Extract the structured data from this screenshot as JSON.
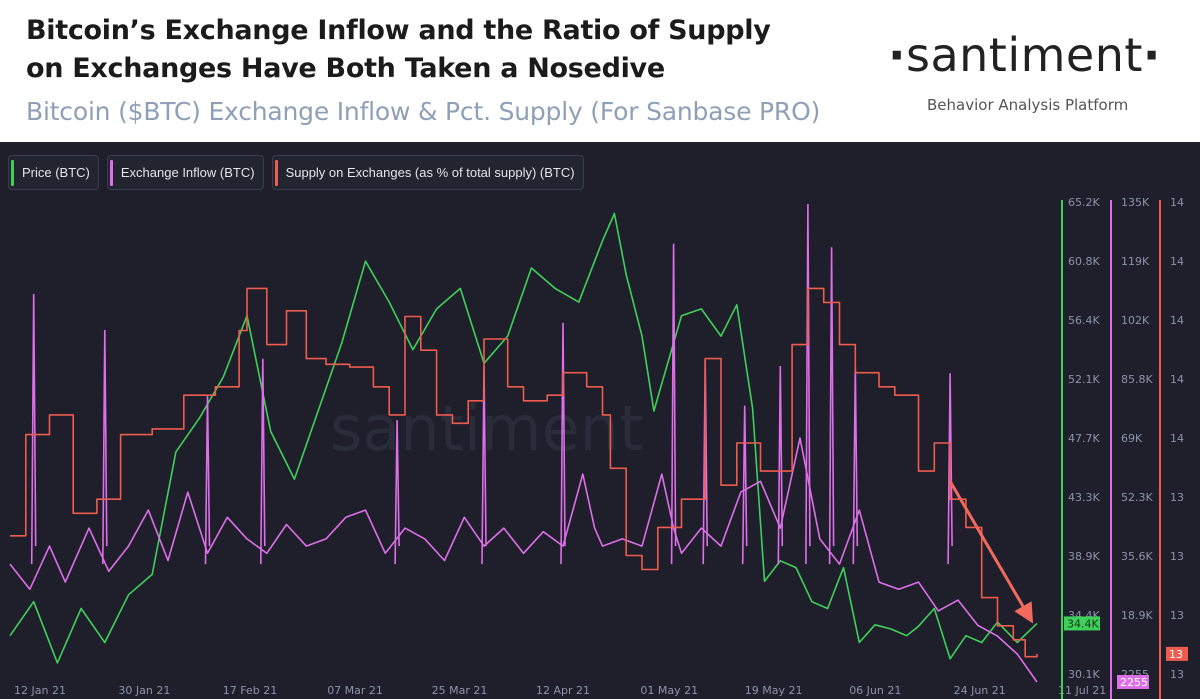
{
  "header": {
    "title_line1": "Bitcoin’s Exchange Inflow and the Ratio of Supply",
    "title_line2": "on Exchanges Have Both Taken a Nosedive",
    "subtitle": "Bitcoin ($BTC) Exchange Inflow & Pct. Supply (For Sanbase PRO)",
    "brand": "santiment",
    "tagline": "Behavior Analysis Platform"
  },
  "watermark": "santiment",
  "colors": {
    "price": "#3fd05a",
    "inflow": "#dd6fe8",
    "supply": "#ee5c4e",
    "background": "#1e1f2b",
    "arrow": "#f26a5d"
  },
  "chart_data": {
    "type": "line",
    "legend": [
      {
        "key": "price",
        "label": "Price (BTC)"
      },
      {
        "key": "inflow",
        "label": "Exchange Inflow (BTC)"
      },
      {
        "key": "supply",
        "label": "Supply on Exchanges (as % of total supply) (BTC)"
      }
    ],
    "x_ticks": [
      "12 Jan 21",
      "30 Jan 21",
      "17 Feb 21",
      "07 Mar 21",
      "25 Mar 21",
      "12 Apr 21",
      "01 May 21",
      "19 May 21",
      "06 Jun 21",
      "24 Jun 21",
      "11 Jul 21"
    ],
    "axes": {
      "price": {
        "ticks": [
          "65.2K",
          "60.8K",
          "56.4K",
          "52.1K",
          "47.7K",
          "43.3K",
          "38.9K",
          "34.4K",
          "30.1K"
        ],
        "range": [
          30100,
          65200
        ],
        "current": "34.4K"
      },
      "inflow": {
        "ticks": [
          "135K",
          "119K",
          "102K",
          "85.8K",
          "69K",
          "52.3K",
          "35.6K",
          "18.9K",
          "2255"
        ],
        "range": [
          2255,
          135000
        ],
        "current": "2255"
      },
      "supply": {
        "ticks": [
          "14",
          "14",
          "14",
          "14",
          "14",
          "13",
          "13",
          "13",
          "13"
        ],
        "range": [
          12.9,
          14.6
        ],
        "current": "13"
      }
    },
    "series": [
      {
        "name": "Price (BTC)",
        "key": "price",
        "points": [
          [
            0,
            33500
          ],
          [
            6,
            36000
          ],
          [
            12,
            31500
          ],
          [
            18,
            35500
          ],
          [
            24,
            33000
          ],
          [
            30,
            36500
          ],
          [
            36,
            38000
          ],
          [
            42,
            47000
          ],
          [
            48,
            49500
          ],
          [
            54,
            52500
          ],
          [
            60,
            57000
          ],
          [
            66,
            48500
          ],
          [
            72,
            45000
          ],
          [
            78,
            50000
          ],
          [
            84,
            55000
          ],
          [
            90,
            61000
          ],
          [
            96,
            58000
          ],
          [
            102,
            54500
          ],
          [
            108,
            57500
          ],
          [
            114,
            59000
          ],
          [
            120,
            53500
          ],
          [
            126,
            55500
          ],
          [
            132,
            60500
          ],
          [
            138,
            59000
          ],
          [
            144,
            58000
          ],
          [
            150,
            62500
          ],
          [
            153,
            64500
          ],
          [
            156,
            60000
          ],
          [
            160,
            55500
          ],
          [
            163,
            50000
          ],
          [
            166,
            53000
          ],
          [
            170,
            57000
          ],
          [
            175,
            57500
          ],
          [
            180,
            55500
          ],
          [
            184,
            57800
          ],
          [
            188,
            50200
          ],
          [
            191,
            37500
          ],
          [
            195,
            39000
          ],
          [
            199,
            38500
          ],
          [
            203,
            36000
          ],
          [
            207,
            35500
          ],
          [
            211,
            38500
          ],
          [
            215,
            33000
          ],
          [
            219,
            34300
          ],
          [
            223,
            34000
          ],
          [
            227,
            33500
          ],
          [
            230,
            34200
          ],
          [
            234,
            35500
          ],
          [
            238,
            31800
          ],
          [
            242,
            33500
          ],
          [
            246,
            33000
          ],
          [
            250,
            34500
          ],
          [
            255,
            33000
          ],
          [
            260,
            34400
          ]
        ]
      },
      {
        "name": "Exchange Inflow (BTC)",
        "key": "inflow",
        "points": [
          [
            0,
            35000
          ],
          [
            5,
            28000
          ],
          [
            10,
            40000
          ],
          [
            14,
            30000
          ],
          [
            20,
            45000
          ],
          [
            25,
            33000
          ],
          [
            30,
            40000
          ],
          [
            35,
            50000
          ],
          [
            40,
            36000
          ],
          [
            45,
            55000
          ],
          [
            50,
            38000
          ],
          [
            55,
            48000
          ],
          [
            60,
            42000
          ],
          [
            65,
            38000
          ],
          [
            70,
            46000
          ],
          [
            75,
            40000
          ],
          [
            80,
            42000
          ],
          [
            85,
            48000
          ],
          [
            90,
            50000
          ],
          [
            95,
            38000
          ],
          [
            100,
            45000
          ],
          [
            105,
            42000
          ],
          [
            110,
            36000
          ],
          [
            115,
            48000
          ],
          [
            120,
            40000
          ],
          [
            125,
            45000
          ],
          [
            130,
            38000
          ],
          [
            135,
            44000
          ],
          [
            140,
            40000
          ],
          [
            145,
            60000
          ],
          [
            148,
            45000
          ],
          [
            150,
            40000
          ],
          [
            155,
            42000
          ],
          [
            160,
            40000
          ],
          [
            165,
            60000
          ],
          [
            168,
            45000
          ],
          [
            170,
            38000
          ],
          [
            175,
            45000
          ],
          [
            180,
            40000
          ],
          [
            185,
            55000
          ],
          [
            190,
            58000
          ],
          [
            195,
            45000
          ],
          [
            200,
            70000
          ],
          [
            205,
            42000
          ],
          [
            210,
            35000
          ],
          [
            215,
            50000
          ],
          [
            220,
            30000
          ],
          [
            225,
            28000
          ],
          [
            230,
            30000
          ],
          [
            235,
            22000
          ],
          [
            240,
            25000
          ],
          [
            245,
            18000
          ],
          [
            250,
            15000
          ],
          [
            255,
            10000
          ],
          [
            260,
            2255
          ]
        ],
        "spikes": [
          [
            6,
            110000
          ],
          [
            24,
            100000
          ],
          [
            50,
            82000
          ],
          [
            64,
            92000
          ],
          [
            98,
            75000
          ],
          [
            120,
            90000
          ],
          [
            140,
            102000
          ],
          [
            168,
            124000
          ],
          [
            176,
            92000
          ],
          [
            186,
            79000
          ],
          [
            195,
            90000
          ],
          [
            202,
            135000
          ],
          [
            208,
            123000
          ],
          [
            214,
            90000
          ],
          [
            238,
            88000
          ]
        ]
      },
      {
        "name": "Supply on Exchanges (as % of total supply) (BTC)",
        "key": "supply",
        "points": [
          [
            0,
            13.42
          ],
          [
            4,
            13.78
          ],
          [
            10,
            13.85
          ],
          [
            16,
            13.5
          ],
          [
            22,
            13.55
          ],
          [
            28,
            13.78
          ],
          [
            36,
            13.8
          ],
          [
            44,
            13.92
          ],
          [
            52,
            13.95
          ],
          [
            58,
            14.15
          ],
          [
            60,
            14.3
          ],
          [
            65,
            14.1
          ],
          [
            70,
            14.22
          ],
          [
            75,
            14.05
          ],
          [
            80,
            14.03
          ],
          [
            86,
            14.02
          ],
          [
            92,
            13.95
          ],
          [
            96,
            13.85
          ],
          [
            100,
            14.2
          ],
          [
            104,
            14.08
          ],
          [
            108,
            13.85
          ],
          [
            112,
            13.82
          ],
          [
            116,
            13.9
          ],
          [
            120,
            14.12
          ],
          [
            126,
            13.95
          ],
          [
            130,
            13.9
          ],
          [
            136,
            13.92
          ],
          [
            140,
            14.0
          ],
          [
            146,
            13.95
          ],
          [
            150,
            13.85
          ],
          [
            152,
            13.66
          ],
          [
            156,
            13.35
          ],
          [
            160,
            13.3
          ],
          [
            164,
            13.45
          ],
          [
            170,
            13.55
          ],
          [
            176,
            14.05
          ],
          [
            180,
            13.6
          ],
          [
            184,
            13.75
          ],
          [
            190,
            13.65
          ],
          [
            198,
            14.1
          ],
          [
            202,
            14.3
          ],
          [
            206,
            14.25
          ],
          [
            210,
            14.1
          ],
          [
            214,
            14.0
          ],
          [
            220,
            13.95
          ],
          [
            224,
            13.92
          ],
          [
            230,
            13.65
          ],
          [
            234,
            13.75
          ],
          [
            238,
            13.55
          ],
          [
            242,
            13.45
          ],
          [
            246,
            13.2
          ],
          [
            250,
            13.1
          ],
          [
            254,
            13.05
          ],
          [
            257,
            12.99
          ],
          [
            260,
            13.0
          ]
        ]
      }
    ],
    "annotations": [
      {
        "type": "arrow",
        "from": [
          238,
          58000
        ],
        "to": [
          259,
          18500
        ],
        "description": "downward arrow"
      }
    ],
    "grid": false
  }
}
